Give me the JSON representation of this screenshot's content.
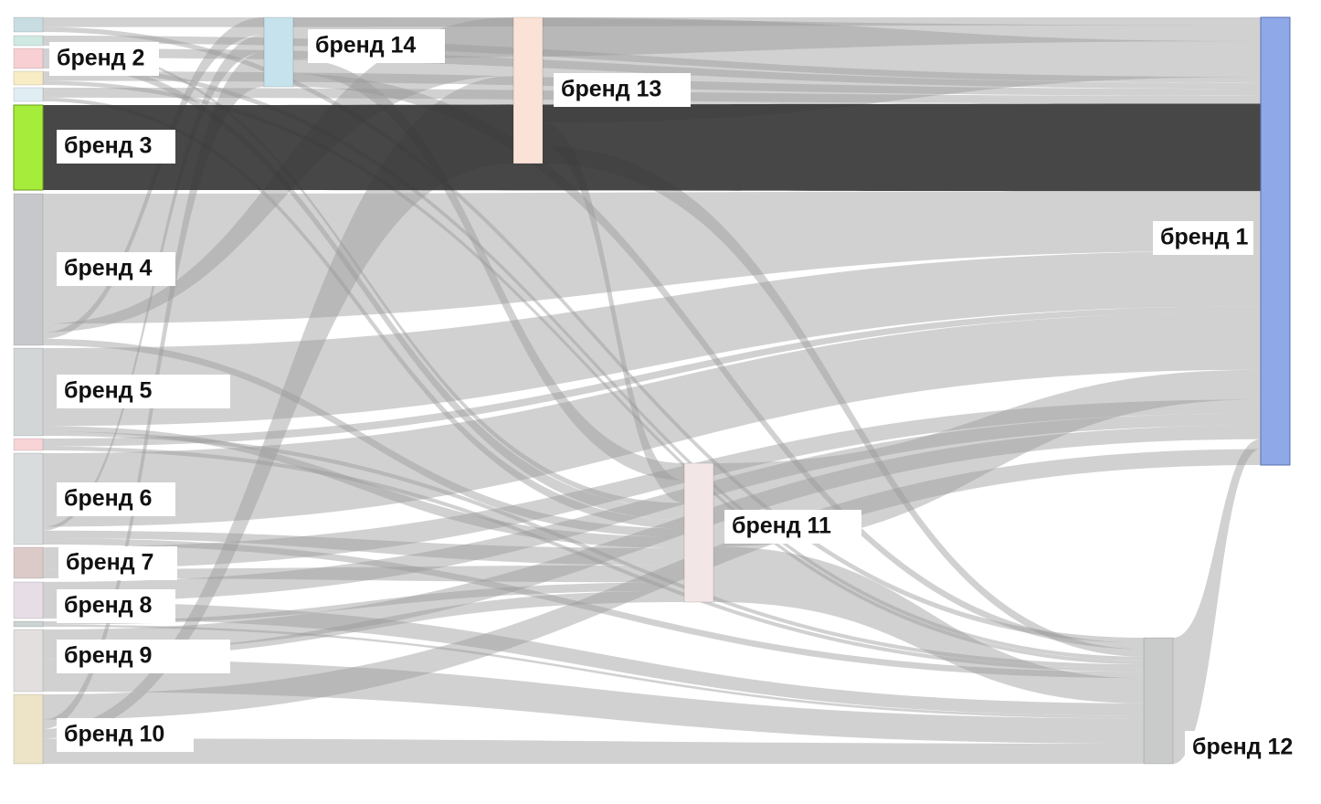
{
  "diagram": {
    "type": "sankey",
    "colors": {
      "link_default": "#9a9a9a",
      "link_highlight": "#333333",
      "node_target_1": "#8fa8e8",
      "node_brand_3": "#a6ec3a"
    },
    "nodes": [
      {
        "id": "n1",
        "label": "бренд 1",
        "color": "#8fa8e8"
      },
      {
        "id": "n2",
        "label": "бренд 2",
        "color": "#f8cfd2"
      },
      {
        "id": "n3",
        "label": "бренд 3",
        "color": "#a6ec3a"
      },
      {
        "id": "n4",
        "label": "бренд 4",
        "color": "#c6c8cc"
      },
      {
        "id": "n5",
        "label": "бренд 5",
        "color": "#d2d6d7"
      },
      {
        "id": "n6",
        "label": "бренд 6",
        "color": "#d8dcdd"
      },
      {
        "id": "n7",
        "label": "бренд 7",
        "color": "#dccac8"
      },
      {
        "id": "n8",
        "label": "бренд 8",
        "color": "#e6dde6"
      },
      {
        "id": "n9",
        "label": "бренд 9",
        "color": "#e3dfde"
      },
      {
        "id": "n10",
        "label": "бренд 10",
        "color": "#ede3c6"
      },
      {
        "id": "n11",
        "label": "бренд 11",
        "color": "#f3e6e6"
      },
      {
        "id": "n12",
        "label": "бренд 12",
        "color": "#c9cbca"
      },
      {
        "id": "n13",
        "label": "бренд 13",
        "color": "#fbe2d6"
      },
      {
        "id": "n14",
        "label": "бренд 14",
        "color": "#c6e2ec"
      },
      {
        "id": "u1",
        "label": "",
        "color": "#c8dde2"
      },
      {
        "id": "u2",
        "label": "",
        "color": "#cfe9e2"
      },
      {
        "id": "u3",
        "label": "",
        "color": "#f7ecc4"
      },
      {
        "id": "u4",
        "label": "",
        "color": "#e0eef4"
      },
      {
        "id": "u5",
        "label": "",
        "color": "#f8d3d6"
      },
      {
        "id": "u6",
        "label": "",
        "color": "#cbd3d3"
      }
    ],
    "links": [
      {
        "source": "n3",
        "target": "n1",
        "value": 88,
        "highlight": true
      },
      {
        "source": "n4",
        "target": "n1",
        "value": 60
      },
      {
        "source": "n4",
        "target": "n13",
        "value": 4
      },
      {
        "source": "n4",
        "target": "n14",
        "value": 3
      },
      {
        "source": "n4",
        "target": "n11",
        "value": 3
      },
      {
        "source": "n5",
        "target": "n1",
        "value": 56
      },
      {
        "source": "n5",
        "target": "n11",
        "value": 4
      },
      {
        "source": "n5",
        "target": "n12",
        "value": 3
      },
      {
        "source": "n6",
        "target": "n1",
        "value": 58
      },
      {
        "source": "n6",
        "target": "n11",
        "value": 6
      },
      {
        "source": "n6",
        "target": "n12",
        "value": 5
      },
      {
        "source": "n6",
        "target": "n14",
        "value": 3
      },
      {
        "source": "n7",
        "target": "n1",
        "value": 14
      },
      {
        "source": "n7",
        "target": "n11",
        "value": 6
      },
      {
        "source": "n8",
        "target": "n1",
        "value": 12
      },
      {
        "source": "n8",
        "target": "n12",
        "value": 10
      },
      {
        "source": "n9",
        "target": "n1",
        "value": 14
      },
      {
        "source": "n9",
        "target": "n12",
        "value": 20
      },
      {
        "source": "n9",
        "target": "n11",
        "value": 4
      },
      {
        "source": "n10",
        "target": "n1",
        "value": 16
      },
      {
        "source": "n10",
        "target": "n12",
        "value": 16
      },
      {
        "source": "n10",
        "target": "n14",
        "value": 6
      },
      {
        "source": "n10",
        "target": "n13",
        "value": 6
      },
      {
        "source": "n2",
        "target": "n1",
        "value": 6
      },
      {
        "source": "n2",
        "target": "n11",
        "value": 4
      },
      {
        "source": "n2",
        "target": "n12",
        "value": 3
      },
      {
        "source": "u1",
        "target": "n1",
        "value": 8
      },
      {
        "source": "u1",
        "target": "n12",
        "value": 4
      },
      {
        "source": "u2",
        "target": "n1",
        "value": 6
      },
      {
        "source": "u2",
        "target": "n11",
        "value": 2
      },
      {
        "source": "u3",
        "target": "n1",
        "value": 7
      },
      {
        "source": "u3",
        "target": "n12",
        "value": 3
      },
      {
        "source": "u4",
        "target": "n1",
        "value": 8
      },
      {
        "source": "u4",
        "target": "n11",
        "value": 3
      },
      {
        "source": "u5",
        "target": "n1",
        "value": 6
      },
      {
        "source": "u5",
        "target": "n12",
        "value": 3
      },
      {
        "source": "u6",
        "target": "n11",
        "value": 3
      },
      {
        "source": "u6",
        "target": "n12",
        "value": 2
      },
      {
        "source": "n14",
        "target": "n1",
        "value": 16
      },
      {
        "source": "n14",
        "target": "n11",
        "value": 6
      },
      {
        "source": "n14",
        "target": "n12",
        "value": 5
      },
      {
        "source": "n13",
        "target": "n1",
        "value": 36
      },
      {
        "source": "n13",
        "target": "n11",
        "value": 8
      },
      {
        "source": "n13",
        "target": "n12",
        "value": 6
      },
      {
        "source": "n11",
        "target": "n1",
        "value": 30
      },
      {
        "source": "n11",
        "target": "n12",
        "value": 20
      },
      {
        "source": "n12",
        "target": "n1",
        "value": 10
      }
    ]
  }
}
